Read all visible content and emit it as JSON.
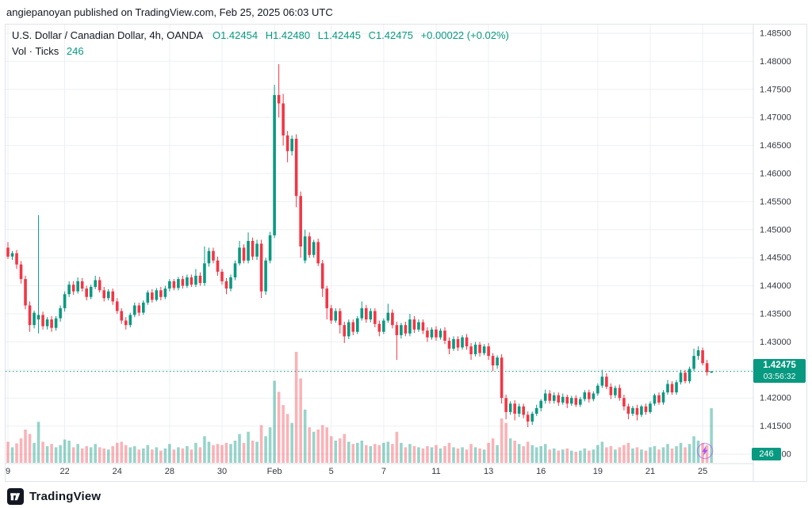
{
  "attribution": {
    "text": "angiepanoyan published on TradingView.com, Feb 25, 2025 06:03 UTC"
  },
  "legend": {
    "symbol": "U.S. Dollar / Canadian Dollar, 4h, OANDA",
    "o": "O1.42454",
    "h": "H1.42480",
    "l": "L1.42445",
    "c": "C1.42475",
    "change": "+0.00022 (+0.02%)",
    "vol_label": "Vol · Ticks",
    "vol_value": "246"
  },
  "price_axis": {
    "current_price": "1.42475",
    "countdown": "03:56:32",
    "volume_badge": "246"
  },
  "footer": {
    "brand": "TradingView"
  },
  "colors": {
    "up": "#089981",
    "down": "#f23645",
    "volume_up": "rgba(8,153,129,0.42)",
    "volume_down": "rgba(242,54,69,0.38)",
    "grid": "#eceff4",
    "axis_line": "#dcdfe6",
    "axis_text": "#353843",
    "badge": "#089981",
    "bolt": "#a855f7"
  },
  "chart_data": {
    "type": "candlestick",
    "symbol": "USD/CAD",
    "interval": "4h",
    "exchange": "OANDA",
    "title": "U.S. Dollar / Canadian Dollar, 4h, OANDA",
    "y_axis": {
      "min": 1.41,
      "max": 1.485,
      "step": 0.005,
      "label_format": "5dp"
    },
    "current_price": 1.42475,
    "current_volume": 246,
    "volume_max_scale": 500,
    "time_ticks": [
      {
        "i": 0,
        "label": "9"
      },
      {
        "i": 13,
        "label": "22"
      },
      {
        "i": 25,
        "label": "24"
      },
      {
        "i": 37,
        "label": "28"
      },
      {
        "i": 49,
        "label": "30"
      },
      {
        "i": 61,
        "label": "Feb"
      },
      {
        "i": 74,
        "label": "5"
      },
      {
        "i": 86,
        "label": "7"
      },
      {
        "i": 98,
        "label": "11"
      },
      {
        "i": 110,
        "label": "13"
      },
      {
        "i": 122,
        "label": "16"
      },
      {
        "i": 135,
        "label": "19"
      },
      {
        "i": 147,
        "label": "21"
      },
      {
        "i": 159,
        "label": "25"
      }
    ],
    "candles_format": [
      "open",
      "high",
      "low",
      "close",
      "volume_ticks"
    ],
    "candles": [
      [
        1.4468,
        1.4478,
        1.4448,
        1.4452,
        95
      ],
      [
        1.4452,
        1.4462,
        1.4446,
        1.4458,
        70
      ],
      [
        1.4458,
        1.4464,
        1.443,
        1.4438,
        88
      ],
      [
        1.4438,
        1.4444,
        1.4404,
        1.4412,
        110
      ],
      [
        1.4412,
        1.4418,
        1.4358,
        1.4365,
        150
      ],
      [
        1.4365,
        1.4372,
        1.4318,
        1.433,
        130
      ],
      [
        1.433,
        1.4356,
        1.4324,
        1.4352,
        90
      ],
      [
        1.434,
        1.4526,
        1.4315,
        1.4348,
        185
      ],
      [
        1.4348,
        1.4354,
        1.4322,
        1.4328,
        95
      ],
      [
        1.4328,
        1.4344,
        1.4322,
        1.434,
        75
      ],
      [
        1.434,
        1.4346,
        1.4318,
        1.4325,
        85
      ],
      [
        1.4325,
        1.4346,
        1.432,
        1.4342,
        70
      ],
      [
        1.4342,
        1.4365,
        1.4336,
        1.436,
        80
      ],
      [
        1.436,
        1.439,
        1.4354,
        1.4385,
        105
      ],
      [
        1.4385,
        1.4408,
        1.438,
        1.4402,
        100
      ],
      [
        1.4402,
        1.4408,
        1.4384,
        1.439,
        70
      ],
      [
        1.439,
        1.4415,
        1.4386,
        1.4408,
        85
      ],
      [
        1.4408,
        1.4414,
        1.439,
        1.4395,
        65
      ],
      [
        1.4395,
        1.44,
        1.4374,
        1.438,
        75
      ],
      [
        1.438,
        1.4402,
        1.4376,
        1.4398,
        70
      ],
      [
        1.4398,
        1.4418,
        1.4394,
        1.441,
        85
      ],
      [
        1.441,
        1.4416,
        1.4388,
        1.4392,
        70
      ],
      [
        1.4392,
        1.4398,
        1.4372,
        1.4378,
        65
      ],
      [
        1.4378,
        1.4394,
        1.4374,
        1.439,
        60
      ],
      [
        1.439,
        1.4395,
        1.4366,
        1.4372,
        75
      ],
      [
        1.4372,
        1.4378,
        1.435,
        1.4355,
        90
      ],
      [
        1.4355,
        1.436,
        1.4332,
        1.4338,
        95
      ],
      [
        1.4338,
        1.4344,
        1.4322,
        1.433,
        80
      ],
      [
        1.433,
        1.4352,
        1.4326,
        1.4348,
        70
      ],
      [
        1.4348,
        1.437,
        1.4344,
        1.4365,
        75
      ],
      [
        1.4365,
        1.437,
        1.4346,
        1.4352,
        60
      ],
      [
        1.4352,
        1.4374,
        1.4348,
        1.437,
        65
      ],
      [
        1.437,
        1.4392,
        1.4366,
        1.4388,
        80
      ],
      [
        1.4388,
        1.4394,
        1.437,
        1.4375,
        60
      ],
      [
        1.4375,
        1.4396,
        1.4372,
        1.4392,
        70
      ],
      [
        1.4392,
        1.4398,
        1.4374,
        1.438,
        55
      ],
      [
        1.438,
        1.44,
        1.4376,
        1.4395,
        65
      ],
      [
        1.4395,
        1.4412,
        1.439,
        1.4408,
        85
      ],
      [
        1.4408,
        1.4412,
        1.4392,
        1.4396,
        60
      ],
      [
        1.4396,
        1.4416,
        1.4392,
        1.4412,
        70
      ],
      [
        1.4412,
        1.4418,
        1.4395,
        1.44,
        65
      ],
      [
        1.44,
        1.442,
        1.4396,
        1.4415,
        75
      ],
      [
        1.4415,
        1.442,
        1.4398,
        1.4402,
        60
      ],
      [
        1.4402,
        1.443,
        1.4398,
        1.4418,
        90
      ],
      [
        1.4418,
        1.4424,
        1.44,
        1.4405,
        70
      ],
      [
        1.4405,
        1.447,
        1.44,
        1.444,
        120
      ],
      [
        1.444,
        1.4468,
        1.4434,
        1.4462,
        95
      ],
      [
        1.4462,
        1.4468,
        1.444,
        1.4445,
        80
      ],
      [
        1.4445,
        1.4452,
        1.4418,
        1.4425,
        85
      ],
      [
        1.4425,
        1.443,
        1.4402,
        1.4408,
        80
      ],
      [
        1.4408,
        1.4414,
        1.4385,
        1.4395,
        90
      ],
      [
        1.4395,
        1.442,
        1.439,
        1.4415,
        85
      ],
      [
        1.4415,
        1.4445,
        1.441,
        1.444,
        100
      ],
      [
        1.444,
        1.448,
        1.4436,
        1.4468,
        130
      ],
      [
        1.4468,
        1.4474,
        1.444,
        1.4445,
        90
      ],
      [
        1.4445,
        1.4495,
        1.444,
        1.448,
        140
      ],
      [
        1.448,
        1.4486,
        1.4446,
        1.4452,
        100
      ],
      [
        1.4452,
        1.4482,
        1.4446,
        1.4475,
        95
      ],
      [
        1.4475,
        1.4482,
        1.4378,
        1.439,
        170
      ],
      [
        1.439,
        1.445,
        1.4384,
        1.4445,
        120
      ],
      [
        1.4445,
        1.4496,
        1.444,
        1.449,
        160
      ],
      [
        1.449,
        1.4758,
        1.4485,
        1.474,
        370
      ],
      [
        1.474,
        1.4795,
        1.47,
        1.4725,
        320
      ],
      [
        1.4725,
        1.4742,
        1.465,
        1.4668,
        260
      ],
      [
        1.4668,
        1.4676,
        1.462,
        1.464,
        220
      ],
      [
        1.464,
        1.4668,
        1.4632,
        1.4662,
        180
      ],
      [
        1.4662,
        1.467,
        1.454,
        1.456,
        500
      ],
      [
        1.456,
        1.4568,
        1.445,
        1.447,
        380
      ],
      [
        1.4445,
        1.45,
        1.444,
        1.4488,
        240
      ],
      [
        1.4488,
        1.4495,
        1.445,
        1.4455,
        160
      ],
      [
        1.4455,
        1.4482,
        1.445,
        1.4478,
        140
      ],
      [
        1.4478,
        1.4484,
        1.4435,
        1.444,
        150
      ],
      [
        1.444,
        1.4446,
        1.438,
        1.4395,
        170
      ],
      [
        1.4395,
        1.44,
        1.434,
        1.436,
        160
      ],
      [
        1.436,
        1.4366,
        1.4332,
        1.4338,
        120
      ],
      [
        1.4338,
        1.436,
        1.4334,
        1.4355,
        100
      ],
      [
        1.4355,
        1.436,
        1.4315,
        1.433,
        110
      ],
      [
        1.433,
        1.4336,
        1.4298,
        1.431,
        130
      ],
      [
        1.431,
        1.434,
        1.4305,
        1.4335,
        95
      ],
      [
        1.4335,
        1.434,
        1.4312,
        1.4318,
        85
      ],
      [
        1.4318,
        1.4346,
        1.4314,
        1.4342,
        90
      ],
      [
        1.4342,
        1.4372,
        1.4338,
        1.436,
        100
      ],
      [
        1.436,
        1.4366,
        1.4334,
        1.434,
        80
      ],
      [
        1.434,
        1.436,
        1.4335,
        1.4355,
        75
      ],
      [
        1.4355,
        1.436,
        1.4326,
        1.4332,
        85
      ],
      [
        1.4332,
        1.4338,
        1.431,
        1.4318,
        80
      ],
      [
        1.4318,
        1.4342,
        1.4314,
        1.4338,
        90
      ],
      [
        1.4338,
        1.4368,
        1.4334,
        1.4352,
        95
      ],
      [
        1.4352,
        1.4358,
        1.4324,
        1.433,
        85
      ],
      [
        1.433,
        1.4336,
        1.4268,
        1.4312,
        140
      ],
      [
        1.4312,
        1.4334,
        1.4306,
        1.433,
        90
      ],
      [
        1.433,
        1.4336,
        1.431,
        1.4315,
        70
      ],
      [
        1.4315,
        1.435,
        1.431,
        1.434,
        85
      ],
      [
        1.434,
        1.4346,
        1.4316,
        1.4322,
        75
      ],
      [
        1.4322,
        1.434,
        1.4318,
        1.4335,
        70
      ],
      [
        1.4335,
        1.434,
        1.4314,
        1.432,
        65
      ],
      [
        1.432,
        1.4326,
        1.43,
        1.4308,
        75
      ],
      [
        1.4308,
        1.4326,
        1.4304,
        1.4322,
        70
      ],
      [
        1.4322,
        1.4328,
        1.4302,
        1.4308,
        80
      ],
      [
        1.4308,
        1.4324,
        1.4304,
        1.432,
        65
      ],
      [
        1.432,
        1.4326,
        1.4296,
        1.4302,
        75
      ],
      [
        1.4302,
        1.4308,
        1.4278,
        1.4288,
        90
      ],
      [
        1.4288,
        1.431,
        1.4284,
        1.4305,
        70
      ],
      [
        1.4305,
        1.431,
        1.4284,
        1.429,
        65
      ],
      [
        1.429,
        1.4312,
        1.4286,
        1.4308,
        70
      ],
      [
        1.4308,
        1.4314,
        1.4286,
        1.4292,
        60
      ],
      [
        1.4292,
        1.4298,
        1.4268,
        1.4278,
        85
      ],
      [
        1.4278,
        1.43,
        1.4274,
        1.4295,
        70
      ],
      [
        1.4295,
        1.43,
        1.4274,
        1.428,
        65
      ],
      [
        1.428,
        1.4296,
        1.4276,
        1.4292,
        60
      ],
      [
        1.4292,
        1.4298,
        1.4268,
        1.4275,
        90
      ],
      [
        1.4275,
        1.428,
        1.4248,
        1.4258,
        110
      ],
      [
        1.4258,
        1.4276,
        1.4252,
        1.4272,
        80
      ],
      [
        1.4272,
        1.4278,
        1.419,
        1.42,
        200
      ],
      [
        1.42,
        1.4206,
        1.4162,
        1.4175,
        180
      ],
      [
        1.4175,
        1.4194,
        1.417,
        1.419,
        110
      ],
      [
        1.419,
        1.4196,
        1.416,
        1.4172,
        100
      ],
      [
        1.4172,
        1.419,
        1.4166,
        1.4185,
        85
      ],
      [
        1.4185,
        1.419,
        1.4164,
        1.417,
        75
      ],
      [
        1.417,
        1.4176,
        1.4148,
        1.4158,
        95
      ],
      [
        1.4158,
        1.4176,
        1.4152,
        1.4172,
        80
      ],
      [
        1.4172,
        1.4188,
        1.4168,
        1.4182,
        70
      ],
      [
        1.4182,
        1.4198,
        1.4176,
        1.4195,
        75
      ],
      [
        1.4195,
        1.4215,
        1.419,
        1.4208,
        85
      ],
      [
        1.4208,
        1.4214,
        1.419,
        1.4195,
        60
      ],
      [
        1.4195,
        1.421,
        1.419,
        1.4205,
        65
      ],
      [
        1.4205,
        1.421,
        1.4186,
        1.4192,
        55
      ],
      [
        1.4192,
        1.4208,
        1.4188,
        1.4202,
        60
      ],
      [
        1.4202,
        1.4206,
        1.4182,
        1.419,
        65
      ],
      [
        1.419,
        1.4204,
        1.4186,
        1.42,
        55
      ],
      [
        1.42,
        1.4205,
        1.4184,
        1.4188,
        50
      ],
      [
        1.4188,
        1.4202,
        1.4184,
        1.4198,
        55
      ],
      [
        1.4198,
        1.4214,
        1.4194,
        1.421,
        65
      ],
      [
        1.421,
        1.4215,
        1.4192,
        1.4198,
        55
      ],
      [
        1.4198,
        1.4212,
        1.4194,
        1.4208,
        60
      ],
      [
        1.4208,
        1.4226,
        1.4204,
        1.4222,
        80
      ],
      [
        1.4222,
        1.425,
        1.4218,
        1.4238,
        95
      ],
      [
        1.4238,
        1.4244,
        1.4216,
        1.422,
        70
      ],
      [
        1.422,
        1.4226,
        1.4198,
        1.4205,
        75
      ],
      [
        1.4205,
        1.4222,
        1.42,
        1.4218,
        60
      ],
      [
        1.4218,
        1.4224,
        1.4195,
        1.42,
        70
      ],
      [
        1.42,
        1.4206,
        1.4178,
        1.4185,
        80
      ],
      [
        1.4185,
        1.419,
        1.4162,
        1.4172,
        90
      ],
      [
        1.4172,
        1.4186,
        1.4168,
        1.4182,
        65
      ],
      [
        1.4182,
        1.4188,
        1.416,
        1.417,
        70
      ],
      [
        1.417,
        1.4188,
        1.4166,
        1.4185,
        60
      ],
      [
        1.4185,
        1.419,
        1.417,
        1.4175,
        55
      ],
      [
        1.4175,
        1.4194,
        1.4172,
        1.419,
        70
      ],
      [
        1.419,
        1.4208,
        1.4186,
        1.4205,
        75
      ],
      [
        1.4205,
        1.421,
        1.4188,
        1.4192,
        60
      ],
      [
        1.4192,
        1.4214,
        1.4188,
        1.421,
        70
      ],
      [
        1.421,
        1.4232,
        1.4206,
        1.4225,
        85
      ],
      [
        1.4225,
        1.423,
        1.4206,
        1.421,
        65
      ],
      [
        1.421,
        1.4232,
        1.4206,
        1.4228,
        75
      ],
      [
        1.4228,
        1.425,
        1.4224,
        1.4245,
        90
      ],
      [
        1.4245,
        1.425,
        1.4226,
        1.423,
        70
      ],
      [
        1.423,
        1.4256,
        1.4226,
        1.4252,
        85
      ],
      [
        1.4252,
        1.4288,
        1.4248,
        1.4275,
        120
      ],
      [
        1.4275,
        1.4292,
        1.4268,
        1.4285,
        100
      ],
      [
        1.4285,
        1.429,
        1.4258,
        1.4262,
        90
      ],
      [
        1.4262,
        1.4268,
        1.424,
        1.4246,
        80
      ],
      [
        1.42454,
        1.4248,
        1.42445,
        1.42475,
        246
      ]
    ]
  }
}
